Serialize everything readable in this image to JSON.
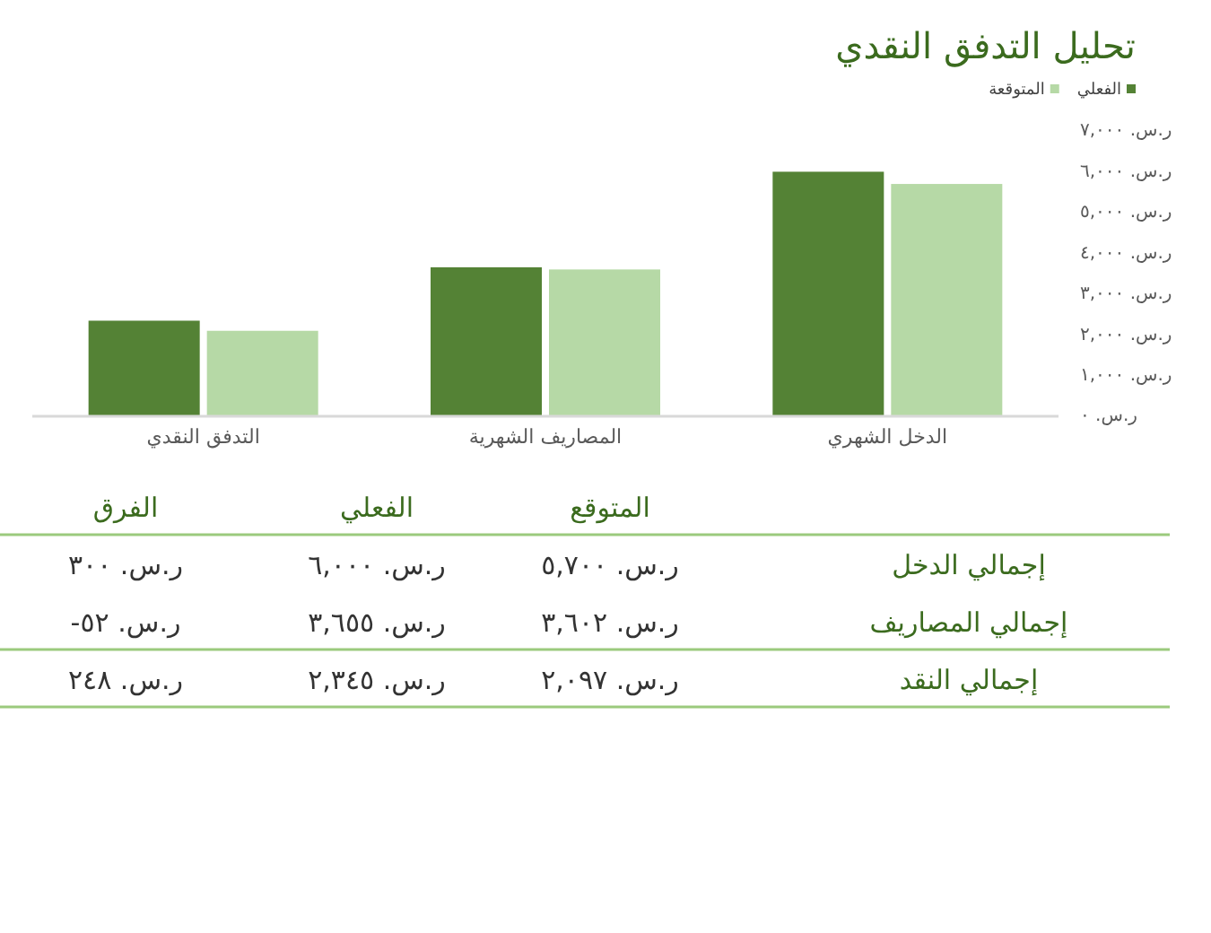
{
  "chart_data": {
    "type": "bar",
    "title": "تحليل التدفق النقدي",
    "categories": [
      "التدفق النقدي",
      "المصاريف الشهرية",
      "الدخل الشهري"
    ],
    "series": [
      {
        "name": "الفعلي",
        "color": "#548235",
        "values": [
          2345,
          3655,
          6000
        ]
      },
      {
        "name": "المتوقعة",
        "color": "#b6d9a6",
        "values": [
          2097,
          3602,
          5700
        ]
      }
    ],
    "ylim": [
      0,
      7000
    ],
    "yticks": [
      {
        "value": 0,
        "label": "ر.س. ٠"
      },
      {
        "value": 1000,
        "label": "ر.س. ١,٠٠٠"
      },
      {
        "value": 2000,
        "label": "ر.س. ٢,٠٠٠"
      },
      {
        "value": 3000,
        "label": "ر.س. ٣,٠٠٠"
      },
      {
        "value": 4000,
        "label": "ر.س. ٤,٠٠٠"
      },
      {
        "value": 5000,
        "label": "ر.س. ٥,٠٠٠"
      },
      {
        "value": 6000,
        "label": "ر.س. ٦,٠٠٠"
      },
      {
        "value": 7000,
        "label": "ر.س. ٧,٠٠٠"
      }
    ],
    "legend": "top right",
    "annotations": [
      "المتوقع",
      "الفعلي",
      "الفرق",
      "إجمالي الدخل",
      "ر.س. ٥,٧٠٠",
      "ر.س. ٦,٠٠٠",
      "ر.س. ٣٠٠",
      "إجمالي المصاريف",
      "ر.س. ٣,٦٠٢",
      "ر.س. ٣,٦٥٥",
      "ر.س. ٥٢-",
      "إجمالي النقد",
      "ر.س. ٢,٠٩٧",
      "ر.س. ٢,٣٤٥",
      "ر.س. ٢٤٨"
    ]
  }
}
